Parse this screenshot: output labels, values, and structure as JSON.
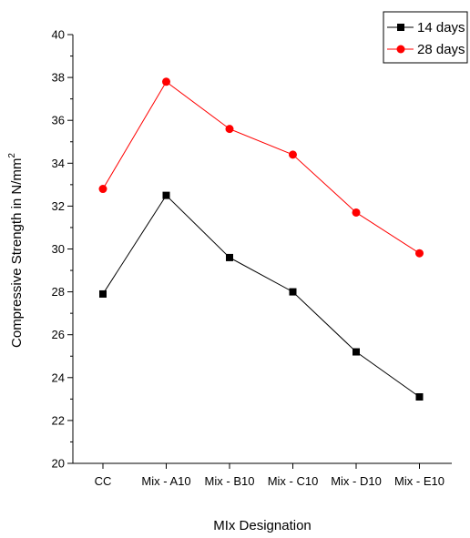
{
  "chart_data": {
    "type": "line",
    "title": "",
    "xlabel": "MIx Designation",
    "ylabel_main": "Compressive Strength in N/mm",
    "ylabel_sup": "2",
    "categories": [
      "CC",
      "Mix - A10",
      "Mix - B10",
      "Mix - C10",
      "Mix - D10",
      "Mix - E10"
    ],
    "ylim": [
      20,
      40
    ],
    "yticks": [
      "20",
      "22",
      "24",
      "26",
      "28",
      "30",
      "32",
      "34",
      "36",
      "38",
      "40"
    ],
    "grid": false,
    "legend_position": "top-right",
    "series": [
      {
        "name": "14 days",
        "values": [
          27.9,
          32.5,
          29.6,
          28.0,
          25.2,
          23.1
        ],
        "color": "#000000",
        "marker": "square"
      },
      {
        "name": "28 days",
        "values": [
          32.8,
          37.8,
          35.6,
          34.4,
          31.7,
          29.8
        ],
        "color": "#ff0000",
        "marker": "circle"
      }
    ]
  }
}
